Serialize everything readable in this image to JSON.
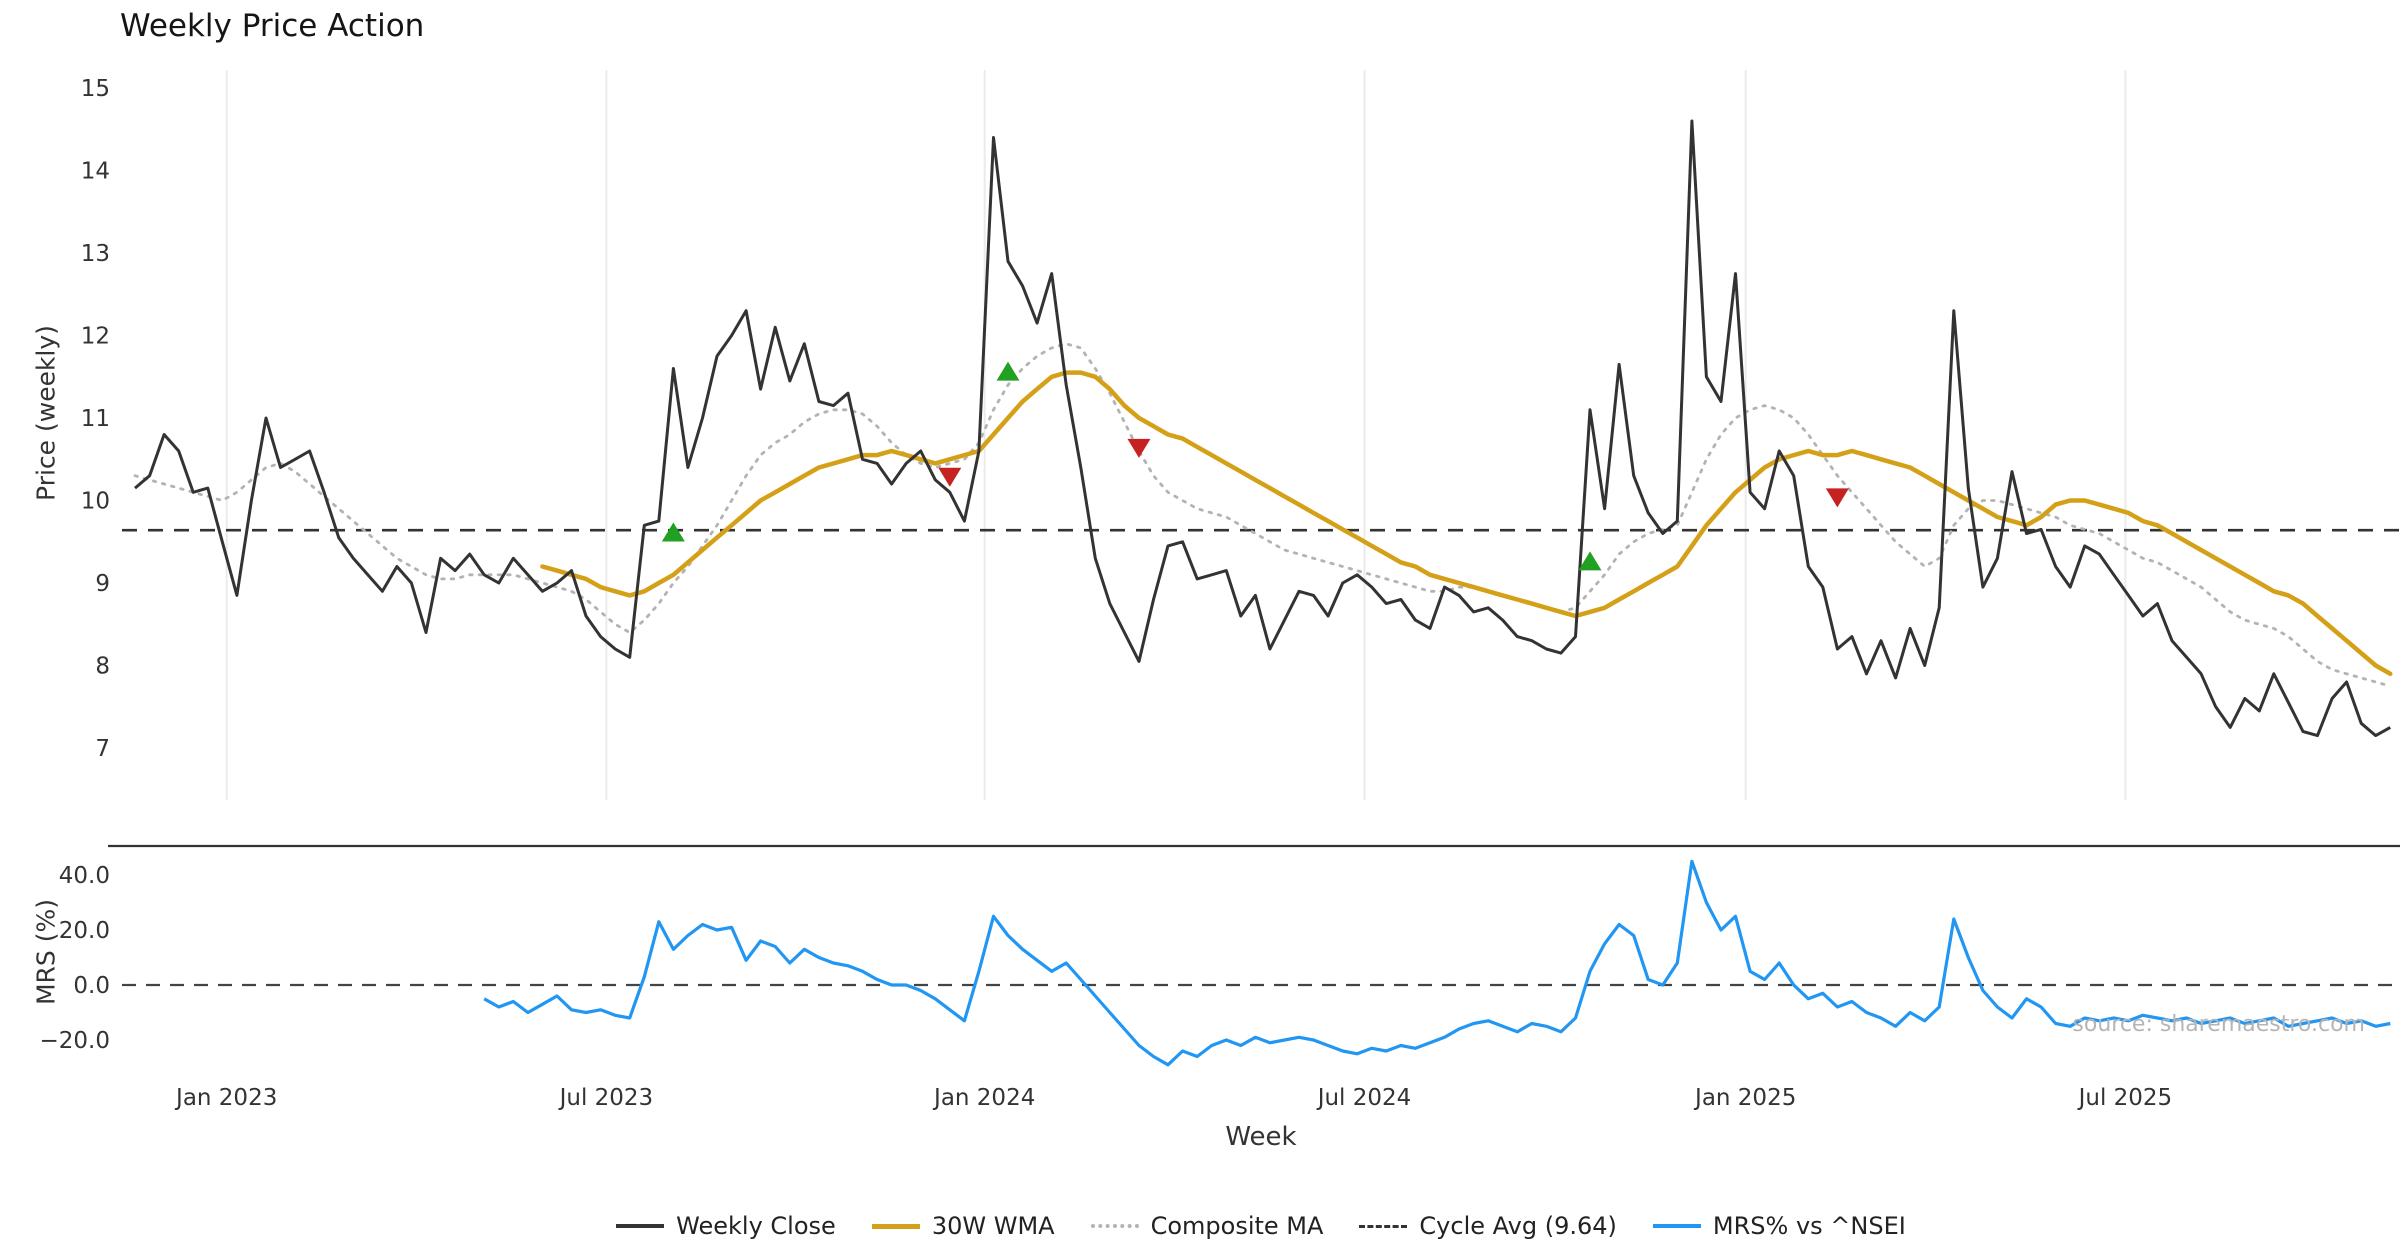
{
  "title": "Weekly Price Action",
  "source": "source: sharemaestro.com",
  "axes": {
    "xlabel": "Week",
    "price_ylabel": "Price (weekly)",
    "mrs_ylabel": "MRS (%)"
  },
  "legend": {
    "items": [
      {
        "label": "Weekly Close",
        "swatch": "close"
      },
      {
        "label": "30W WMA",
        "swatch": "wma"
      },
      {
        "label": "Composite MA",
        "swatch": "composite"
      },
      {
        "label": "Cycle Avg (9.64)",
        "swatch": "cycle"
      },
      {
        "label": "MRS% vs ^NSEI",
        "swatch": "mrs"
      }
    ]
  },
  "chart_data": {
    "type": "line",
    "title": "Weekly Price Action",
    "xlabel": "Week",
    "x_ticks": [
      {
        "label": "Jan 2023",
        "week": 6.3
      },
      {
        "label": "Jul 2023",
        "week": 32.4
      },
      {
        "label": "Jan 2024",
        "week": 58.4
      },
      {
        "label": "Jul 2024",
        "week": 84.5
      },
      {
        "label": "Jan 2025",
        "week": 110.7
      },
      {
        "label": "Jul 2025",
        "week": 136.8
      }
    ],
    "colors": {
      "close": "#333333",
      "wma": "#d4a017",
      "composite": "#b3b3b3",
      "cycle": "#333333",
      "mrs": "#2196f3",
      "buy": "#21a121",
      "sell": "#c62222",
      "grid": "#ebebeb",
      "zero": "#444444"
    },
    "price_panel": {
      "ylabel": "Price (weekly)",
      "ylim": [
        7,
        15
      ],
      "yticks": [
        7,
        8,
        9,
        10,
        11,
        12,
        13,
        14,
        15
      ],
      "cycle_avg": 9.64,
      "series": [
        {
          "name": "Weekly Close",
          "style": "solid",
          "start_week": 0,
          "values": [
            10.15,
            10.3,
            10.8,
            10.6,
            10.1,
            10.15,
            9.5,
            8.85,
            10.0,
            11.0,
            10.4,
            10.5,
            10.6,
            10.1,
            9.55,
            9.3,
            9.1,
            8.9,
            9.2,
            9.0,
            8.4,
            9.3,
            9.15,
            9.35,
            9.1,
            9.0,
            9.3,
            9.1,
            8.9,
            9.0,
            9.15,
            8.6,
            8.35,
            8.2,
            8.1,
            9.7,
            9.75,
            11.6,
            10.4,
            11.0,
            11.75,
            12.0,
            12.3,
            11.35,
            12.1,
            11.45,
            11.9,
            11.2,
            11.15,
            11.3,
            10.5,
            10.45,
            10.2,
            10.45,
            10.6,
            10.25,
            10.1,
            9.75,
            10.6,
            14.4,
            12.9,
            12.6,
            12.15,
            12.75,
            11.4,
            10.4,
            9.3,
            8.75,
            8.4,
            8.05,
            8.8,
            9.45,
            9.5,
            9.05,
            9.1,
            9.15,
            8.6,
            8.85,
            8.2,
            8.55,
            8.9,
            8.85,
            8.6,
            9.0,
            9.1,
            8.95,
            8.75,
            8.8,
            8.55,
            8.45,
            8.95,
            8.85,
            8.65,
            8.7,
            8.55,
            8.35,
            8.3,
            8.2,
            8.15,
            8.35,
            11.1,
            9.9,
            11.65,
            10.3,
            9.85,
            9.6,
            9.75,
            14.6,
            11.5,
            11.2,
            12.75,
            10.1,
            9.9,
            10.6,
            10.3,
            9.2,
            8.95,
            8.2,
            8.35,
            7.9,
            8.3,
            7.85,
            8.45,
            8.0,
            8.7,
            12.3,
            10.15,
            8.95,
            9.3,
            10.35,
            9.6,
            9.65,
            9.2,
            8.95,
            9.45,
            9.35,
            9.1,
            8.85,
            8.6,
            8.75,
            8.3,
            8.1,
            7.9,
            7.5,
            7.25,
            7.6,
            7.45,
            7.9,
            7.55,
            7.2,
            7.15,
            7.6,
            7.8,
            7.3,
            7.15,
            7.25
          ]
        },
        {
          "name": "30W WMA",
          "style": "solid",
          "start_week": 28,
          "values": [
            9.2,
            9.15,
            9.1,
            9.05,
            8.95,
            8.9,
            8.85,
            8.9,
            9.0,
            9.1,
            9.25,
            9.4,
            9.55,
            9.7,
            9.85,
            10.0,
            10.1,
            10.2,
            10.3,
            10.4,
            10.45,
            10.5,
            10.55,
            10.55,
            10.6,
            10.55,
            10.5,
            10.45,
            10.5,
            10.55,
            10.6,
            10.8,
            11.0,
            11.2,
            11.35,
            11.5,
            11.55,
            11.55,
            11.5,
            11.35,
            11.15,
            11.0,
            10.9,
            10.8,
            10.75,
            10.65,
            10.55,
            10.45,
            10.35,
            10.25,
            10.15,
            10.05,
            9.95,
            9.85,
            9.75,
            9.65,
            9.55,
            9.45,
            9.35,
            9.25,
            9.2,
            9.1,
            9.05,
            9.0,
            8.95,
            8.9,
            8.85,
            8.8,
            8.75,
            8.7,
            8.65,
            8.6,
            8.65,
            8.7,
            8.8,
            8.9,
            9.0,
            9.1,
            9.2,
            9.45,
            9.7,
            9.9,
            10.1,
            10.25,
            10.4,
            10.5,
            10.55,
            10.6,
            10.55,
            10.55,
            10.6,
            10.55,
            10.5,
            10.45,
            10.4,
            10.3,
            10.2,
            10.1,
            10.0,
            9.9,
            9.8,
            9.75,
            9.7,
            9.8,
            9.95,
            10.0,
            10.0,
            9.95,
            9.9,
            9.85,
            9.75,
            9.7,
            9.6,
            9.5,
            9.4,
            9.3,
            9.2,
            9.1,
            9.0,
            8.9,
            8.85,
            8.75,
            8.6,
            8.45,
            8.3,
            8.15,
            8.0,
            7.9
          ]
        },
        {
          "name": "Composite MA",
          "style": "dotted",
          "start_week": 0,
          "values": [
            10.3,
            10.25,
            10.2,
            10.15,
            10.1,
            10.05,
            10.0,
            10.1,
            10.25,
            10.4,
            10.45,
            10.35,
            10.2,
            10.05,
            9.9,
            9.75,
            9.6,
            9.45,
            9.3,
            9.2,
            9.1,
            9.05,
            9.05,
            9.1,
            9.1,
            9.1,
            9.1,
            9.05,
            9.0,
            8.95,
            8.9,
            8.8,
            8.65,
            8.5,
            8.4,
            8.55,
            8.75,
            9.0,
            9.2,
            9.45,
            9.7,
            10.0,
            10.3,
            10.55,
            10.7,
            10.8,
            10.95,
            11.05,
            11.1,
            11.1,
            11.05,
            10.9,
            10.7,
            10.55,
            10.45,
            10.4,
            10.45,
            10.5,
            10.7,
            11.1,
            11.4,
            11.6,
            11.75,
            11.85,
            11.9,
            11.85,
            11.6,
            11.3,
            10.95,
            10.6,
            10.3,
            10.1,
            10.0,
            9.9,
            9.85,
            9.8,
            9.7,
            9.6,
            9.5,
            9.4,
            9.35,
            9.3,
            9.25,
            9.2,
            9.15,
            9.1,
            9.05,
            9.0,
            8.95,
            8.9,
            8.9,
            8.95,
            8.95,
            8.9,
            8.85,
            8.8,
            8.75,
            8.7,
            8.65,
            8.7,
            8.9,
            9.1,
            9.35,
            9.5,
            9.6,
            9.65,
            9.7,
            10.1,
            10.5,
            10.8,
            11.0,
            11.1,
            11.15,
            11.1,
            11.0,
            10.8,
            10.55,
            10.3,
            10.1,
            9.9,
            9.7,
            9.5,
            9.35,
            9.2,
            9.3,
            9.7,
            9.9,
            10.0,
            10.0,
            9.95,
            9.9,
            9.85,
            9.8,
            9.7,
            9.65,
            9.6,
            9.5,
            9.4,
            9.3,
            9.25,
            9.15,
            9.05,
            8.95,
            8.8,
            8.65,
            8.55,
            8.5,
            8.45,
            8.35,
            8.2,
            8.05,
            7.95,
            7.9,
            7.85,
            7.8,
            7.75
          ]
        }
      ],
      "signals": {
        "buys": [
          {
            "week": 37,
            "value": 9.6
          },
          {
            "week": 60,
            "value": 11.55
          },
          {
            "week": 100,
            "value": 9.25
          }
        ],
        "sells": [
          {
            "week": 56,
            "value": 10.3
          },
          {
            "week": 69,
            "value": 10.65
          },
          {
            "week": 117,
            "value": 10.05
          }
        ]
      }
    },
    "mrs_panel": {
      "ylabel": "MRS (%)",
      "yticks": [
        {
          "value": 40,
          "label": "40.0"
        },
        {
          "value": 20,
          "label": "20.0"
        },
        {
          "value": 0,
          "label": "0.0"
        },
        {
          "value": -20,
          "label": "−20.0"
        }
      ],
      "zero_line": 0,
      "series": [
        {
          "name": "MRS% vs ^NSEI",
          "style": "solid",
          "start_week": 24,
          "values": [
            -5,
            -8,
            -6,
            -10,
            -7,
            -4,
            -9,
            -10,
            -9,
            -11,
            -12,
            3,
            23,
            13,
            18,
            22,
            20,
            21,
            9,
            16,
            14,
            8,
            13,
            10,
            8,
            7,
            5,
            2,
            0,
            0,
            -2,
            -5,
            -9,
            -13,
            5,
            25,
            18,
            13,
            9,
            5,
            8,
            2,
            -4,
            -10,
            -16,
            -22,
            -26,
            -29,
            -24,
            -26,
            -22,
            -20,
            -22,
            -19,
            -21,
            -20,
            -19,
            -20,
            -22,
            -24,
            -25,
            -23,
            -24,
            -22,
            -23,
            -21,
            -19,
            -16,
            -14,
            -13,
            -15,
            -17,
            -14,
            -15,
            -17,
            -12,
            5,
            15,
            22,
            18,
            2,
            0,
            8,
            45,
            30,
            20,
            25,
            5,
            2,
            8,
            0,
            -5,
            -3,
            -8,
            -6,
            -10,
            -12,
            -15,
            -10,
            -13,
            -8,
            24,
            10,
            -2,
            -8,
            -12,
            -5,
            -8,
            -14,
            -15,
            -12,
            -13,
            -12,
            -13,
            -11,
            -12,
            -13,
            -12,
            -14,
            -13,
            -12,
            -14,
            -13,
            -12,
            -15,
            -14,
            -13,
            -12,
            -14,
            -13,
            -15,
            -14
          ]
        }
      ]
    }
  }
}
